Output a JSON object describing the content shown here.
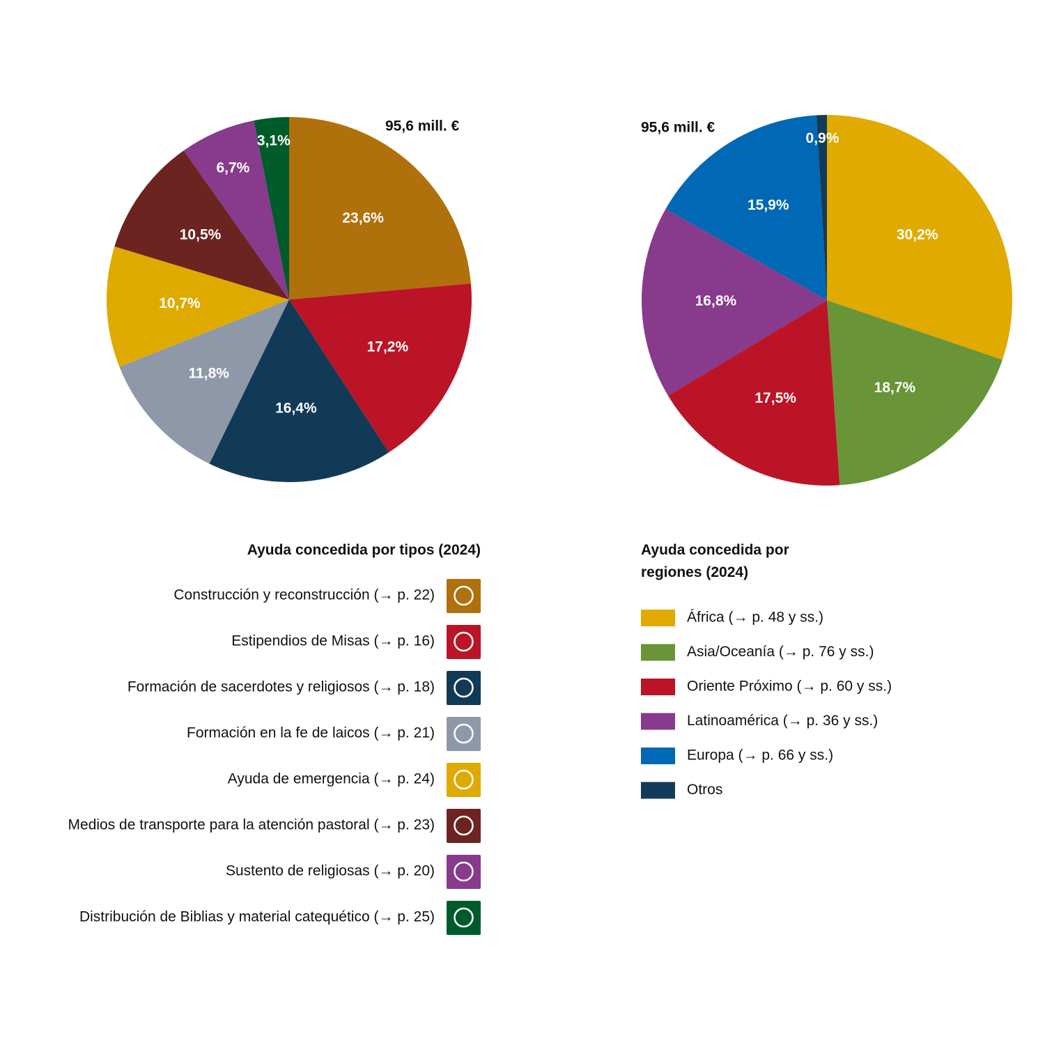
{
  "chart_data": [
    {
      "type": "pie",
      "title": "Ayuda concedida por tipos (2024)",
      "annotation": "95,6 mill. €",
      "categories": [
        "Construcción y reconstrucción (→ p. 22)",
        "Estipendios de Misas (→ p. 16)",
        "Formación de sacerdotes y religiosos (→ p. 18)",
        "Formación en la fe de laicos (→ p. 21)",
        "Ayuda de emergencia (→ p. 24)",
        "Medios de transporte para la atención pastoral (→ p. 23)",
        "Sustento de religiosas (→ p. 20)",
        "Distribución de Biblias y material catequético (→ p. 25)"
      ],
      "values": [
        23.6,
        17.2,
        16.4,
        11.8,
        10.7,
        10.5,
        6.7,
        3.1
      ],
      "value_labels": [
        "23,6%",
        "17,2%",
        "16,4%",
        "11,8%",
        "10,7%",
        "10,5%",
        "6,7%",
        "3,1%"
      ],
      "colors": [
        "#b0700c",
        "#bb1427",
        "#113a56",
        "#8e98a8",
        "#dfaa00",
        "#6b2420",
        "#883a8c",
        "#005b2a"
      ]
    },
    {
      "type": "pie",
      "title": "Ayuda concedida por regiones (2024)",
      "annotation": "95,6 mill. €",
      "categories": [
        "África (→ p. 48 y ss.)",
        "Asia/Oceanía (→ p. 76 y ss.)",
        "Oriente Próximo (→ p. 60 y ss.)",
        "Latinoamérica (→ p. 36 y ss.)",
        "Europa (→ p. 66 y ss.)",
        "Otros"
      ],
      "values": [
        30.2,
        18.7,
        17.5,
        16.8,
        15.9,
        0.9
      ],
      "value_labels": [
        "30,2%",
        "18,7%",
        "17,5%",
        "16,8%",
        "15,9%",
        "0,9%"
      ],
      "colors": [
        "#e0aa00",
        "#6a9438",
        "#bb1427",
        "#883a8c",
        "#0068b4",
        "#133a58"
      ]
    }
  ]
}
